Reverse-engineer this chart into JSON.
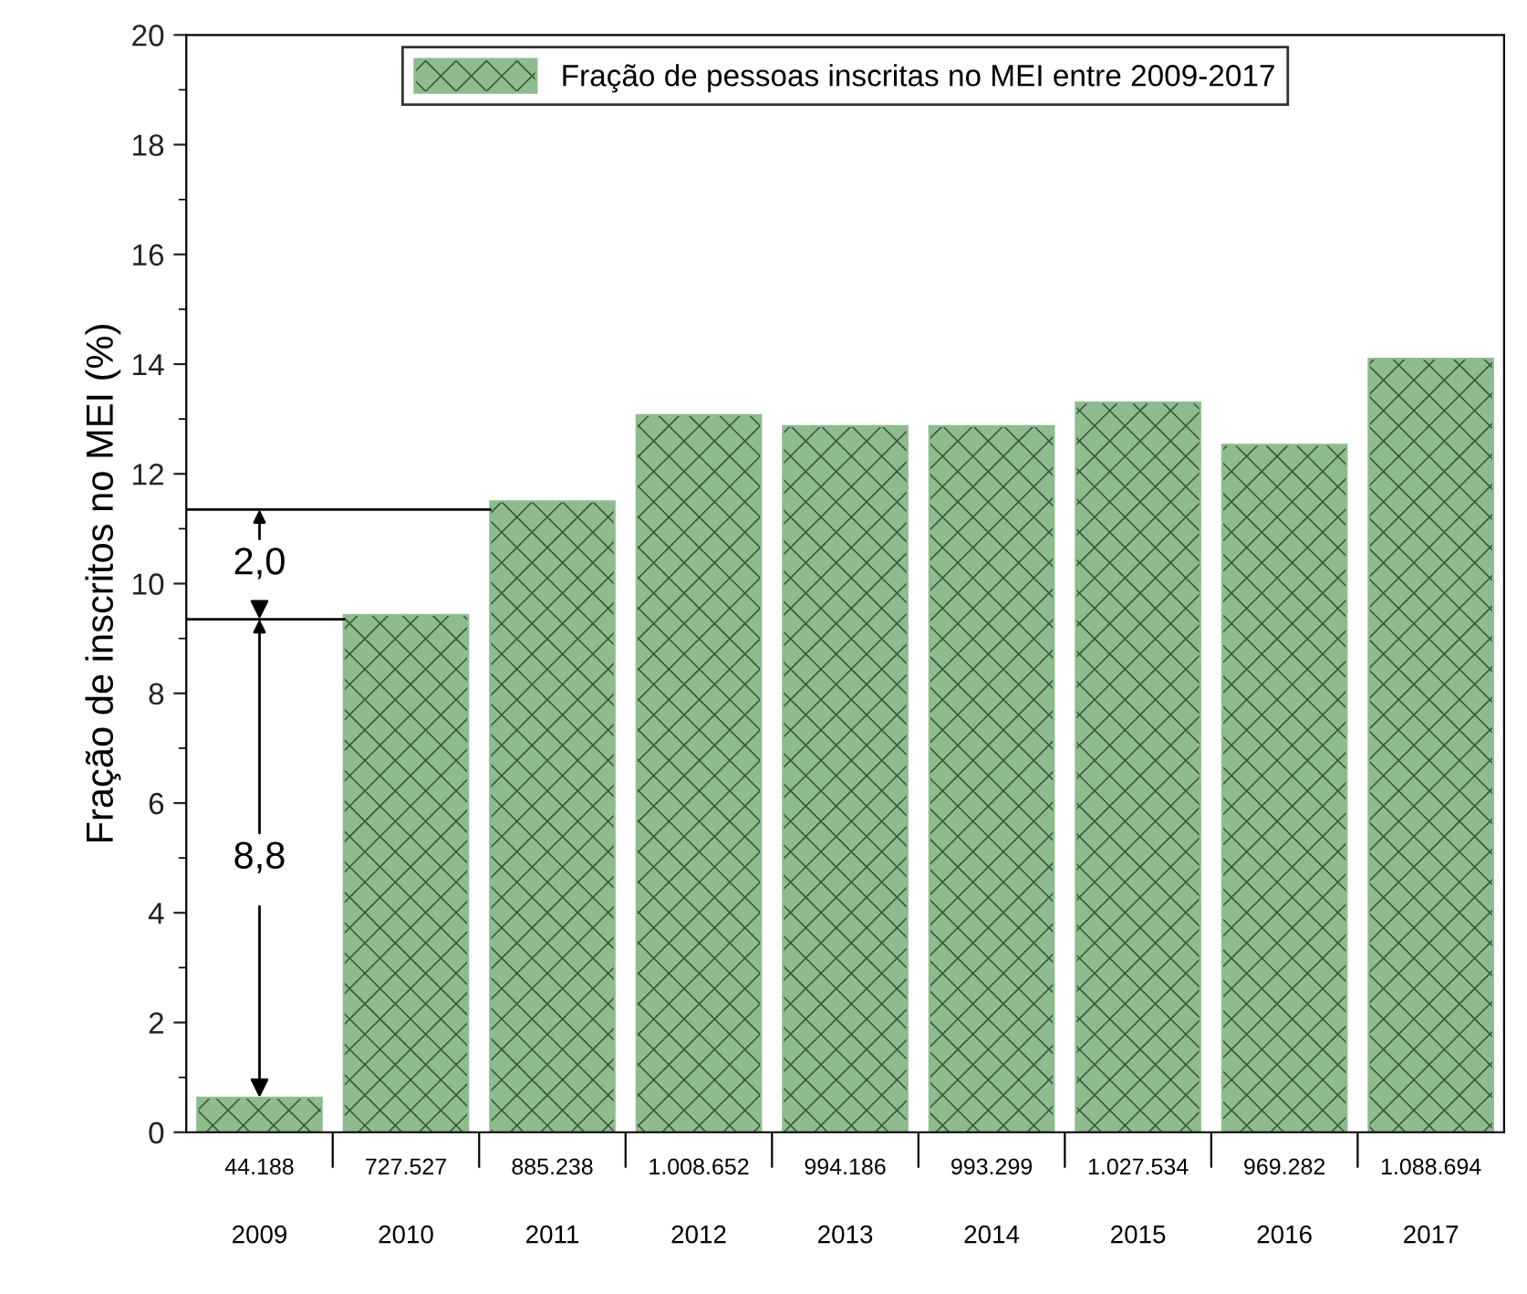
{
  "chart_data": {
    "type": "bar",
    "ylabel": "Fração de inscritos no MEI (%)",
    "categories": [
      "2009",
      "2010",
      "2011",
      "2012",
      "2013",
      "2014",
      "2015",
      "2016",
      "2017"
    ],
    "series": [
      {
        "name": "Fração de pessoas inscritas no MEI entre 2009-2017",
        "color": "#8fbc8f",
        "values": [
          0.63,
          9.43,
          11.5,
          13.07,
          12.87,
          12.87,
          13.3,
          12.53,
          14.1
        ]
      }
    ],
    "ylim": [
      0,
      20
    ],
    "yticks": [
      0,
      2,
      4,
      6,
      8,
      10,
      12,
      14,
      16,
      18,
      20
    ],
    "ref_lines": [
      {
        "axis": "y",
        "value": 9.35
      },
      {
        "axis": "y",
        "value": 11.35
      }
    ],
    "annotations": [
      {
        "text": "8,8",
        "x": "2009",
        "y": 0.63
      },
      {
        "text": "2,0",
        "x": "2009",
        "y": 9.35
      },
      "44.188",
      "727.527",
      "885.238",
      "1.008.652",
      "994.186",
      "993.299",
      "1.027.534",
      "969.282",
      "1.088.694"
    ],
    "legend": "top",
    "grid": false
  }
}
